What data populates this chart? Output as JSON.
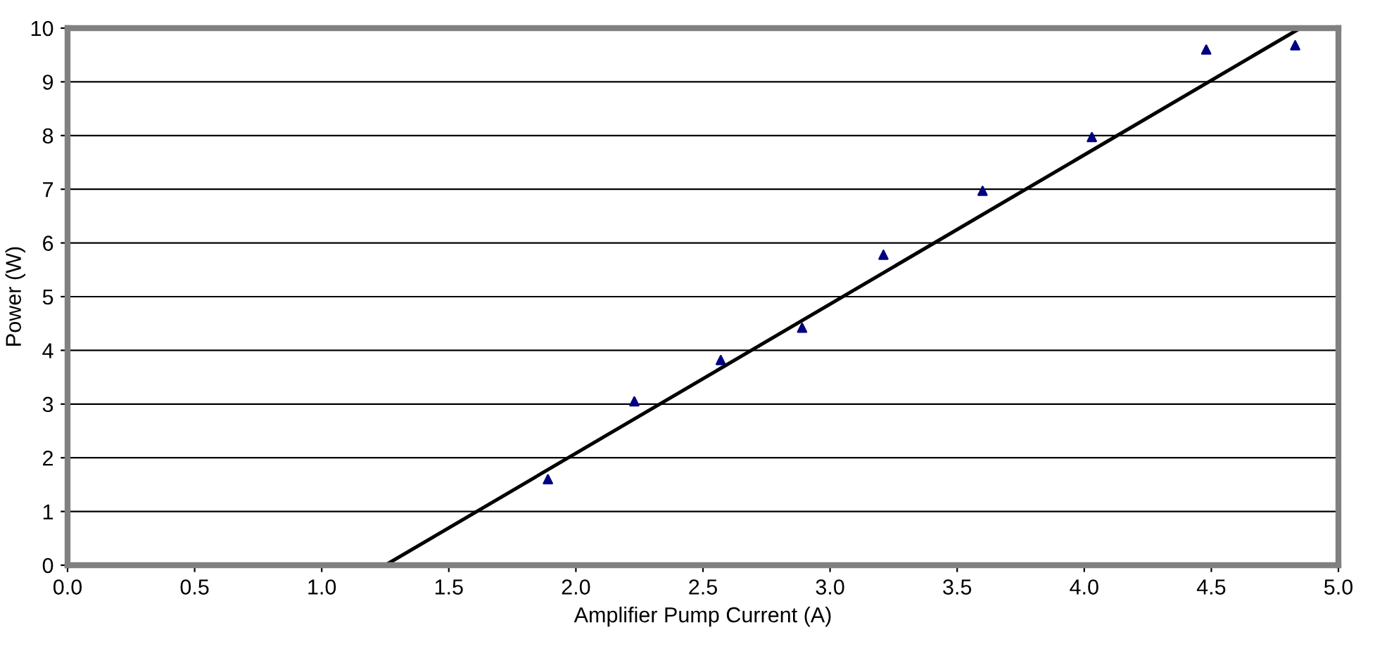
{
  "chart_data": {
    "type": "scatter",
    "xlabel": "Amplifier Pump Current (A)",
    "ylabel": "Power (W)",
    "series": [
      {
        "color": "#000080",
        "marker": "triangle",
        "x": [
          1.89,
          2.23,
          2.57,
          2.89,
          3.21,
          3.6,
          4.03,
          4.48,
          4.83
        ],
        "values": [
          1.6,
          3.05,
          3.82,
          4.42,
          5.78,
          6.97,
          7.97,
          9.6,
          9.68
        ]
      },
      {
        "type": "line",
        "color": "#000000",
        "marker": "none",
        "x": [
          1.25,
          4.85
        ],
        "values": [
          0,
          10
        ]
      }
    ],
    "xlim": [
      0,
      5
    ],
    "xticks": [
      {
        "value": 0,
        "label": "0.0"
      },
      {
        "value": 0.5,
        "label": "0.5"
      },
      {
        "value": 1,
        "label": "1.0"
      },
      {
        "value": 1.5,
        "label": "1.5"
      },
      {
        "value": 2,
        "label": "2.0"
      },
      {
        "value": 2.5,
        "label": "2.5"
      },
      {
        "value": 3,
        "label": "3.0"
      },
      {
        "value": 3.5,
        "label": "3.5"
      },
      {
        "value": 4,
        "label": "4.0"
      },
      {
        "value": 4.5,
        "label": "4.5"
      },
      {
        "value": 5,
        "label": "5.0"
      }
    ],
    "ylim": [
      0,
      10
    ],
    "yticks": [
      0,
      1,
      2,
      3,
      4,
      5,
      6,
      7,
      8,
      9,
      10
    ],
    "grid": "y"
  }
}
